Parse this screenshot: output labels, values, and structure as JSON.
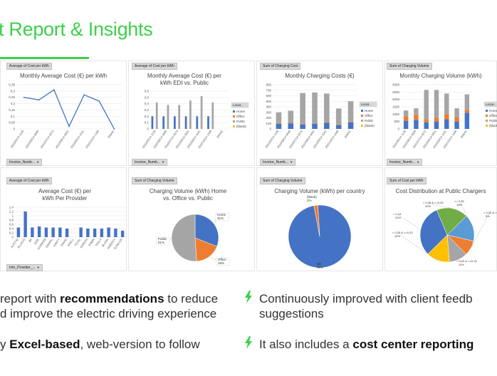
{
  "page": {
    "title": "t Report & Insights",
    "accent": "#3ecf4c"
  },
  "colors": {
    "blue": "#4472c4",
    "orange": "#ed7d31",
    "gray": "#a5a5a5",
    "yellow": "#ffc000",
    "lightblue": "#5b9bd5",
    "green": "#70ad47"
  },
  "panels": [
    {
      "chip_top": "Average of Cost per kWh",
      "title": "Monthly Average Cost (€) per kWh",
      "chip_bottom": "Invoice_Numb...",
      "chart_data": {
        "type": "line",
        "categories": [
          "2022/05/14 1126",
          "2022/06/14 0848",
          "2022/07/14 0573",
          "2022/08/14 0951",
          "2022/09/14 1041",
          "2022/10/14 1346",
          "(blank)"
        ],
        "values": [
          0.25,
          0.23,
          0.31,
          0.02,
          0.27,
          0.22,
          0.0
        ],
        "ylim": [
          0,
          0.35
        ],
        "yticks": [
          "0",
          "0,05",
          "0,1",
          "0,15",
          "0,2",
          "0,25",
          "0,3",
          "0,35"
        ]
      }
    },
    {
      "chip_top": "Average of Cost per kWh",
      "title": "Monthly Average Cost (€) per kWh EDI vs. Public",
      "chip_bottom": "Invoice_Numb...",
      "legend_title": "Locat...",
      "chart_data": {
        "type": "bar",
        "categories": [
          "2022/05/14 1126",
          "2022/06/14 0848",
          "2022/07/14 0573",
          "2022/08/14 0951",
          "2022/09/14 1041",
          "2022/10/14 1346",
          "(blank)"
        ],
        "series": [
          {
            "name": "Home",
            "values": [
              0.2,
              0.2,
              0.2,
              0.2,
              0.2,
              0.2,
              0
            ]
          },
          {
            "name": "Office",
            "values": [
              0.0,
              0.0,
              0.0,
              0.0,
              0.0,
              0.0,
              0
            ]
          },
          {
            "name": "Public",
            "values": [
              0.42,
              0.38,
              0.38,
              0.45,
              0.52,
              0.42,
              0
            ]
          },
          {
            "name": "(blank)",
            "values": [
              0,
              0,
              0,
              0,
              0,
              0,
              0
            ]
          }
        ],
        "ylim": [
          0,
          0.6
        ],
        "yticks": [
          "0",
          "0,1",
          "0,2",
          "0,3",
          "0,4",
          "0,5",
          "0,6"
        ]
      }
    },
    {
      "chip_top": "Sum of Charging Cost",
      "title": "Monthly Charging Costs (€)",
      "chip_bottom": "Invoice_Numb...",
      "legend_title": "Locat...",
      "chart_data": {
        "type": "bar",
        "stacked": true,
        "categories": [
          "2022/05/14 1126",
          "2022/06/14 0848",
          "2022/07/14 0573",
          "2022/08/14 0951",
          "2022/09/14 1041",
          "2022/10/14 1346",
          "(blank)"
        ],
        "series": [
          {
            "name": "Home",
            "values": [
              90,
              100,
              80,
              90,
              110,
              70,
              120
            ]
          },
          {
            "name": "Office",
            "values": [
              10,
              10,
              10,
              10,
              10,
              10,
              10
            ]
          },
          {
            "name": "Public",
            "values": [
              200,
              220,
              560,
              560,
              520,
              290,
              370
            ]
          },
          {
            "name": "(blank)",
            "values": [
              0,
              0,
              0,
              0,
              0,
              0,
              0
            ]
          }
        ],
        "ylim": [
          0,
          800
        ],
        "yticks": [
          "0",
          "100",
          "200",
          "300",
          "400",
          "500",
          "600",
          "700",
          "800"
        ]
      }
    },
    {
      "chip_top": "Sum of Charging Volume",
      "title": "Monthly Charging Volume (kWh)",
      "chip_bottom": "Invoice_Numb...",
      "legend_title": "Locat...",
      "chart_data": {
        "type": "bar",
        "stacked": true,
        "categories": [
          "2022/05/14 1126",
          "2022/06/14 0848",
          "2022/07/14 0573",
          "2022/08/14 0951",
          "2022/09/14 1041",
          "2022/10/14 1346",
          "(blank)"
        ],
        "series": [
          {
            "name": "Home",
            "values": [
              550,
              600,
              450,
              500,
              650,
              500,
              1100
            ]
          },
          {
            "name": "Office",
            "values": [
              300,
              350,
              200,
              250,
              350,
              300,
              200
            ]
          },
          {
            "name": "Public",
            "values": [
              400,
              450,
              2000,
              1900,
              1400,
              600,
              1050
            ]
          },
          {
            "name": "(blank)",
            "values": [
              0,
              0,
              0,
              0,
              0,
              0,
              0
            ]
          }
        ],
        "ylim": [
          0,
          3000
        ],
        "yticks": [
          "0",
          "500",
          "1000",
          "1500",
          "2000",
          "2500",
          "3000"
        ]
      }
    },
    {
      "chip_top": "Average of Cost per kWh",
      "title": "Average Cost (€) per kWh Per Provider",
      "chip_bottom": "Info_Provider_...",
      "chart_data": {
        "type": "bar",
        "categories": [
          "ALPITIQ",
          "ALLEGO",
          "BP",
          "EWE",
          "EONWEB",
          "EINMAL",
          "IONITY",
          "(blank)",
          "SHELL",
          "TOTAL",
          "EWEGO",
          "ENBW",
          "TESLA",
          "BLANK",
          "AMERGY",
          "EONLIVE"
        ],
        "values": [
          0.45,
          1.2,
          0.45,
          0.5,
          0.45,
          0.45,
          0.45,
          0.4,
          0.0,
          0.45,
          0.4,
          0.4,
          0.4,
          0.45,
          0.4,
          0.3
        ],
        "ylim": [
          0,
          1.4
        ],
        "yticks": [
          "0",
          "0,2",
          "0,4",
          "0,6",
          "0,8",
          "1",
          "1,2",
          "1,4"
        ]
      }
    },
    {
      "chip_top": "Sum of Charging Volume",
      "title": "Charging Volume (kWh) Home vs. Office vs. Public",
      "chart_data": {
        "type": "pie",
        "slices": [
          {
            "label": "Home",
            "value": 31,
            "pct": "31%"
          },
          {
            "label": "Office",
            "value": 18,
            "pct": "18%"
          },
          {
            "label": "Public",
            "value": 51,
            "pct": "51%"
          }
        ]
      }
    },
    {
      "chip_top": "Sum of Charging Volume",
      "title": "Charging Volume (kWh) per country",
      "chart_data": {
        "type": "pie",
        "slices": [
          {
            "label": "DE",
            "value": 98,
            "pct": "98%"
          },
          {
            "label": "(blank)",
            "value": 2,
            "pct": "2%"
          }
        ]
      }
    },
    {
      "chip_top": "Sum of Cost per kWh",
      "title": "Cost Distribution at Public Chargers",
      "chart_data": {
        "type": "pie",
        "slices": [
          {
            "label": "< 0,30 & >=0,25",
            "value": 19,
            "pct": "19%"
          },
          {
            "label": ">= 0,35",
            "value": 16,
            "pct": "16%"
          },
          {
            "label": "< 0,35 & >=0,30",
            "value": 9,
            "pct": "9%"
          },
          {
            "label": "< 0,20 & >=0,15",
            "value": 11,
            "pct": "11%"
          },
          {
            "label": "< 0,25 & >=0,20",
            "value": 14,
            "pct": "14%"
          },
          {
            "label": "< 0,15",
            "value": 31,
            "pct": "31%"
          }
        ]
      }
    }
  ],
  "bullets": [
    {
      "pre": "report with ",
      "bold": "recommendations",
      "post": " to reduce"
    },
    {
      "pre": "d improve the electric driving experience",
      "bold": "",
      "post": ""
    },
    {
      "pre": "Continuously improved with client feedb",
      "bold": "",
      "post": ""
    },
    {
      "pre": "suggestions",
      "bold": "",
      "post": ""
    },
    {
      "pre": "y ",
      "bold": "Excel-based",
      "post": ", web-version to follow"
    },
    {
      "pre": "It also includes a ",
      "bold": "cost center reporting",
      "post": ""
    }
  ]
}
